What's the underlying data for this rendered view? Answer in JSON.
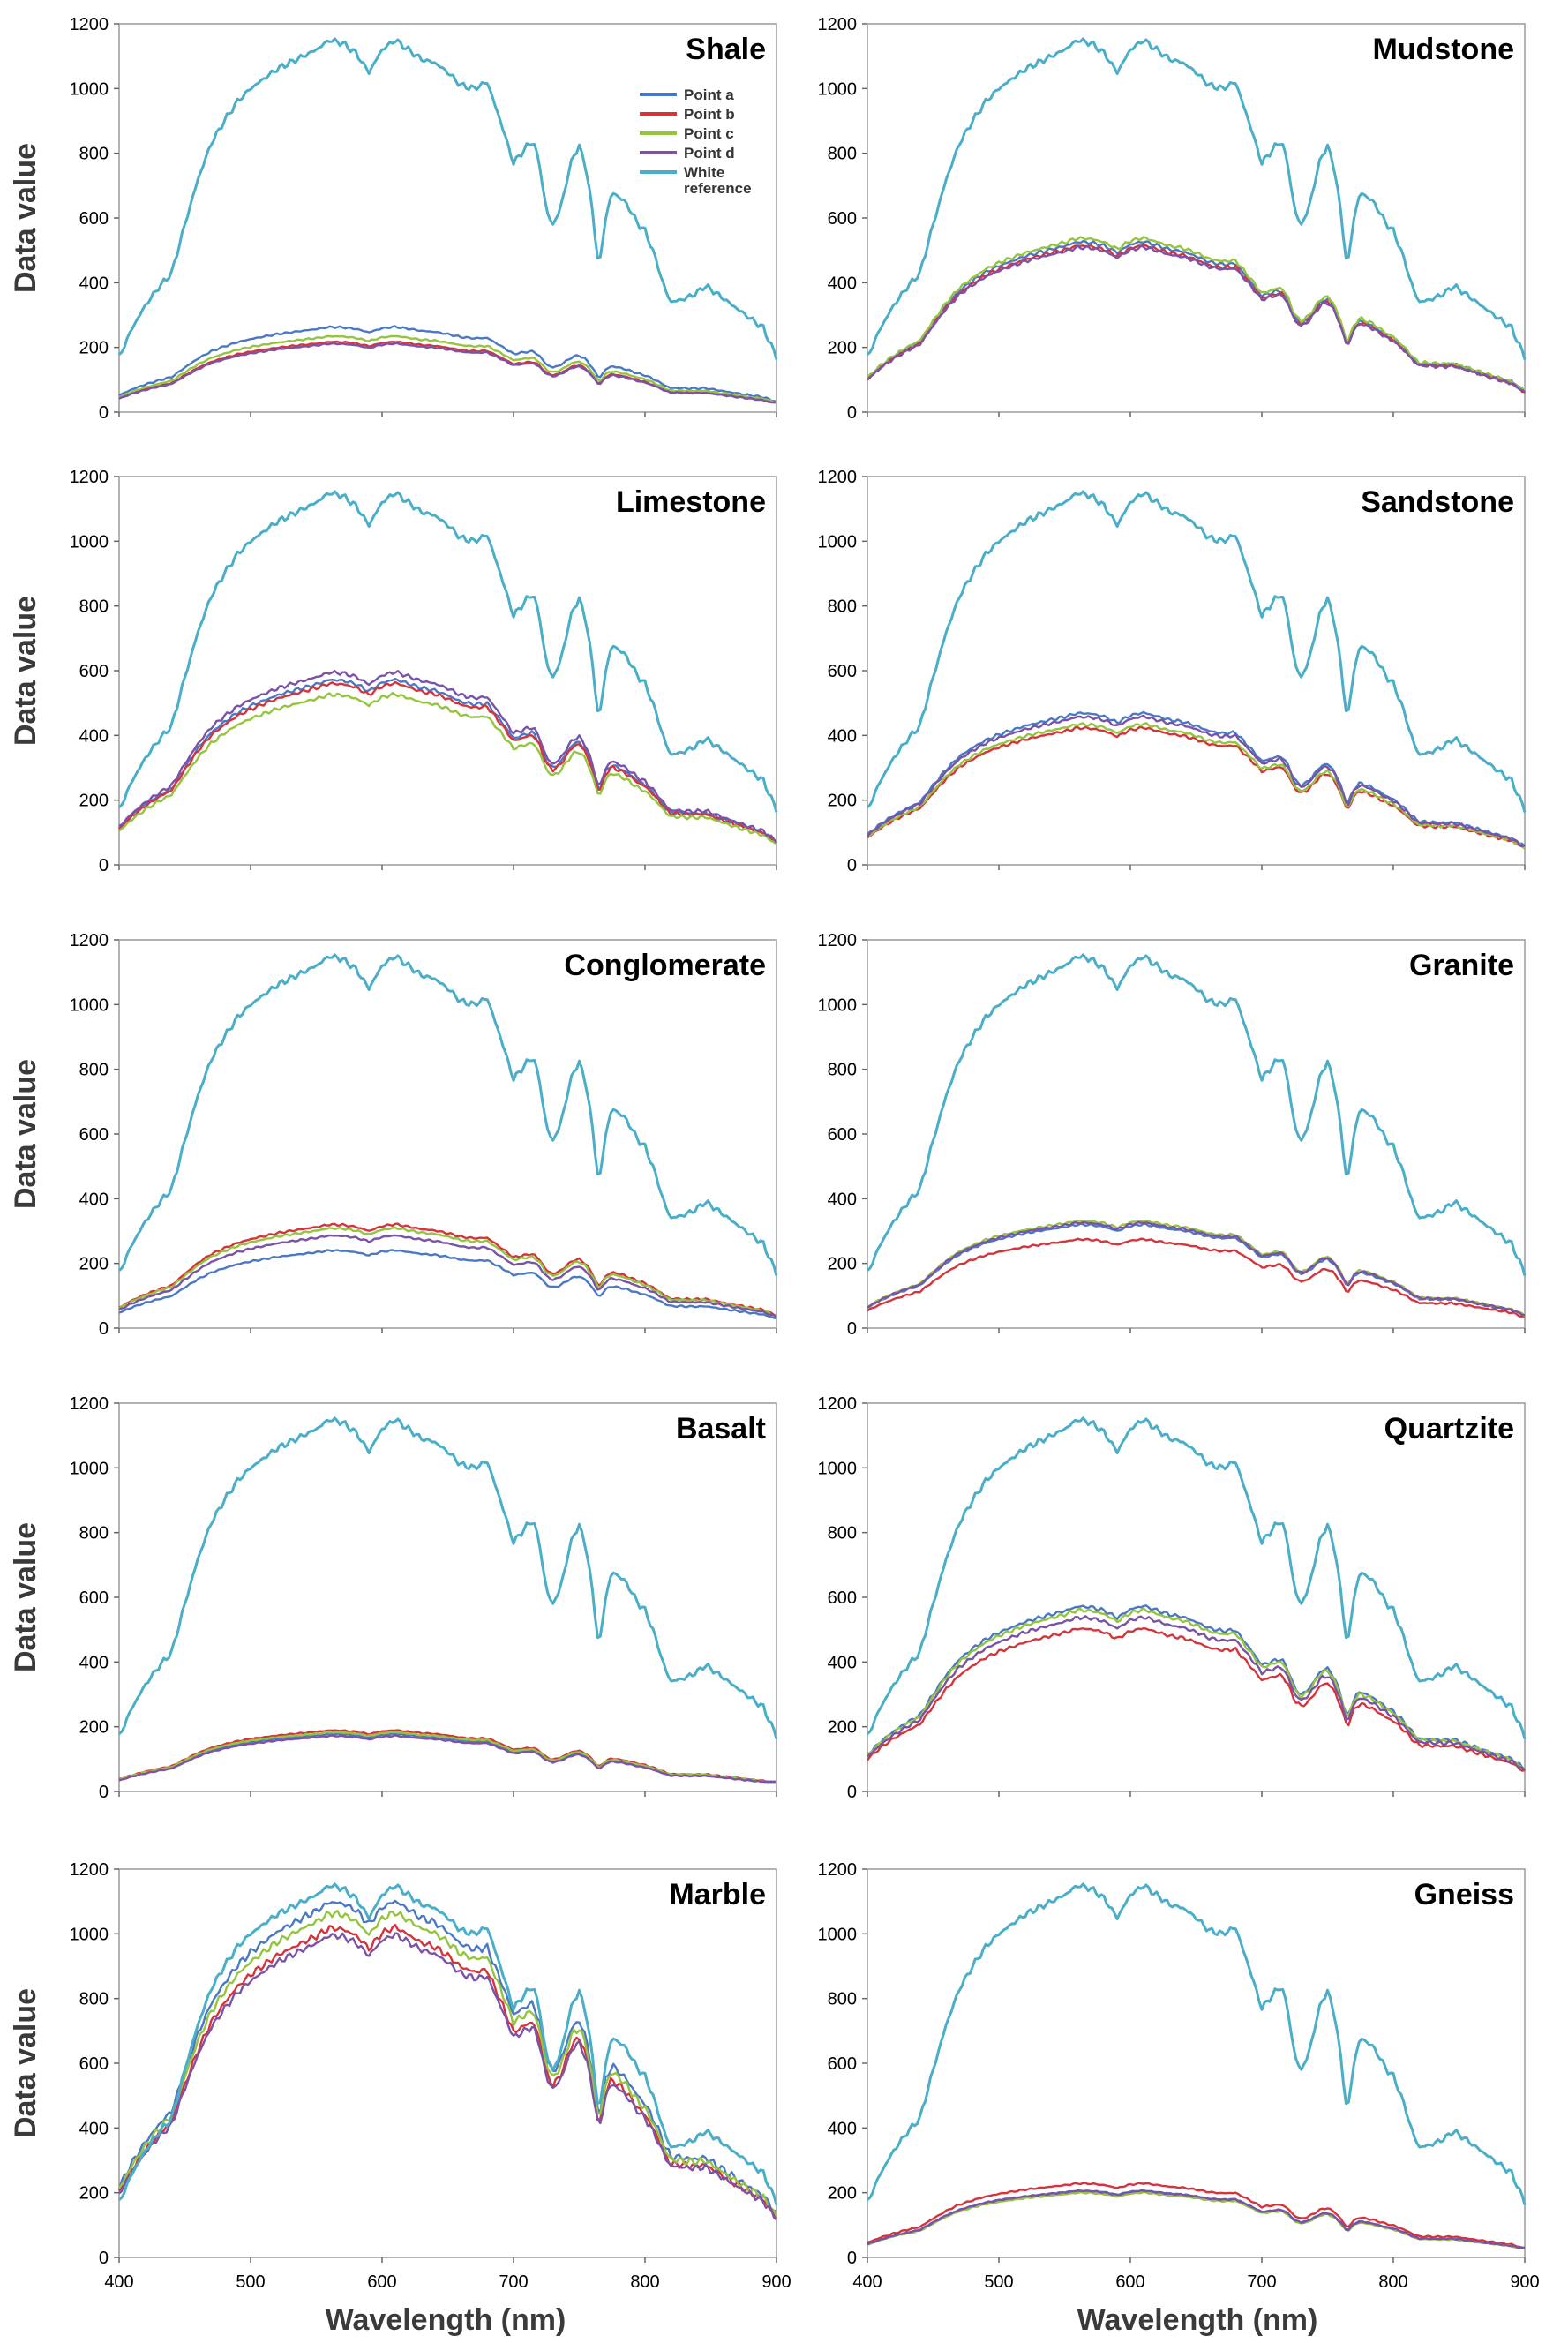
{
  "figure": {
    "ylabel": "Data value",
    "xlabel": "Wavelength (nm)"
  },
  "legend": {
    "entries": [
      {
        "label": "Point a",
        "color": "#4a78c4"
      },
      {
        "label": "Point b",
        "color": "#d6333b"
      },
      {
        "label": "Point c",
        "color": "#95c43d"
      },
      {
        "label": "Point d",
        "color": "#7a52a8"
      },
      {
        "label": "White reference",
        "label_line1": "White",
        "label_line2": "reference",
        "color": "#4aaec8"
      }
    ]
  },
  "chart_data": [
    {
      "type": "line",
      "title": "Shale",
      "xlim": [
        400,
        900
      ],
      "ylim": [
        0,
        1200
      ],
      "xticks": [
        "400",
        "500",
        "600",
        "700",
        "800",
        "900"
      ],
      "yticks": [
        "0",
        "200",
        "400",
        "600",
        "800",
        "1000",
        "1200"
      ],
      "series": [
        {
          "name": "Point a",
          "scale": 0.23
        },
        {
          "name": "Point b",
          "scale": 0.19
        },
        {
          "name": "Point c",
          "scale": 0.205
        },
        {
          "name": "Point d",
          "scale": 0.185
        },
        {
          "name": "White reference",
          "scale": 1.0
        }
      ]
    },
    {
      "type": "line",
      "title": "Mudstone",
      "xlim": [
        400,
        900
      ],
      "ylim": [
        0,
        1200
      ],
      "xticks": [
        "400",
        "500",
        "600",
        "700",
        "800",
        "900"
      ],
      "yticks": [
        "0",
        "200",
        "400",
        "600",
        "800",
        "1000",
        "1200"
      ],
      "series": [
        {
          "name": "Point a",
          "scale": 0.46
        },
        {
          "name": "Point b",
          "scale": 0.45
        },
        {
          "name": "Point c",
          "scale": 0.47
        },
        {
          "name": "Point d",
          "scale": 0.445
        },
        {
          "name": "White reference",
          "scale": 1.0
        }
      ]
    },
    {
      "type": "line",
      "title": "Limestone",
      "xlim": [
        400,
        900
      ],
      "ylim": [
        0,
        1200
      ],
      "xticks": [
        "400",
        "500",
        "600",
        "700",
        "800",
        "900"
      ],
      "yticks": [
        "0",
        "200",
        "400",
        "600",
        "800",
        "1000",
        "1200"
      ],
      "series": [
        {
          "name": "Point a",
          "scale": 0.5
        },
        {
          "name": "Point b",
          "scale": 0.49
        },
        {
          "name": "Point c",
          "scale": 0.46
        },
        {
          "name": "Point d",
          "scale": 0.52
        },
        {
          "name": "White reference",
          "scale": 1.0
        }
      ]
    },
    {
      "type": "line",
      "title": "Sandstone",
      "xlim": [
        400,
        900
      ],
      "ylim": [
        0,
        1200
      ],
      "xticks": [
        "400",
        "500",
        "600",
        "700",
        "800",
        "900"
      ],
      "yticks": [
        "0",
        "200",
        "400",
        "600",
        "800",
        "1000",
        "1200"
      ],
      "series": [
        {
          "name": "Point a",
          "scale": 0.41
        },
        {
          "name": "Point b",
          "scale": 0.37
        },
        {
          "name": "Point c",
          "scale": 0.38
        },
        {
          "name": "Point d",
          "scale": 0.4
        },
        {
          "name": "White reference",
          "scale": 1.0
        }
      ]
    },
    {
      "type": "line",
      "title": "Conglomerate",
      "xlim": [
        400,
        900
      ],
      "ylim": [
        0,
        1200
      ],
      "xticks": [
        "400",
        "500",
        "600",
        "700",
        "800",
        "900"
      ],
      "yticks": [
        "0",
        "200",
        "400",
        "600",
        "800",
        "1000",
        "1200"
      ],
      "series": [
        {
          "name": "Point a",
          "scale": 0.21
        },
        {
          "name": "Point b",
          "scale": 0.28
        },
        {
          "name": "Point c",
          "scale": 0.27
        },
        {
          "name": "Point d",
          "scale": 0.25
        },
        {
          "name": "White reference",
          "scale": 1.0
        }
      ]
    },
    {
      "type": "line",
      "title": "Granite",
      "xlim": [
        400,
        900
      ],
      "ylim": [
        0,
        1200
      ],
      "xticks": [
        "400",
        "500",
        "600",
        "700",
        "800",
        "900"
      ],
      "yticks": [
        "0",
        "200",
        "400",
        "600",
        "800",
        "1000",
        "1200"
      ],
      "series": [
        {
          "name": "Point a",
          "scale": 0.28
        },
        {
          "name": "Point b",
          "scale": 0.24
        },
        {
          "name": "Point c",
          "scale": 0.29
        },
        {
          "name": "Point d",
          "scale": 0.285
        },
        {
          "name": "White reference",
          "scale": 1.0
        }
      ]
    },
    {
      "type": "line",
      "title": "Basalt",
      "xlim": [
        400,
        900
      ],
      "ylim": [
        0,
        1200
      ],
      "xticks": [
        "400",
        "500",
        "600",
        "700",
        "800",
        "900"
      ],
      "yticks": [
        "0",
        "200",
        "400",
        "600",
        "800",
        "1000",
        "1200"
      ],
      "series": [
        {
          "name": "Point a",
          "scale": 0.155
        },
        {
          "name": "Point b",
          "scale": 0.165
        },
        {
          "name": "Point c",
          "scale": 0.16
        },
        {
          "name": "Point d",
          "scale": 0.15
        },
        {
          "name": "White reference",
          "scale": 1.0
        }
      ]
    },
    {
      "type": "line",
      "title": "Quartzite",
      "xlim": [
        400,
        900
      ],
      "ylim": [
        0,
        1200
      ],
      "xticks": [
        "400",
        "500",
        "600",
        "700",
        "800",
        "900"
      ],
      "yticks": [
        "0",
        "200",
        "400",
        "600",
        "800",
        "1000",
        "1200"
      ],
      "series": [
        {
          "name": "Point a",
          "scale": 0.5
        },
        {
          "name": "Point b",
          "scale": 0.44
        },
        {
          "name": "Point c",
          "scale": 0.49
        },
        {
          "name": "Point d",
          "scale": 0.47
        },
        {
          "name": "White reference",
          "scale": 1.0
        }
      ]
    },
    {
      "type": "line",
      "title": "Marble",
      "xlim": [
        400,
        900
      ],
      "ylim": [
        0,
        1200
      ],
      "xticks": [
        "400",
        "500",
        "600",
        "700",
        "800",
        "900"
      ],
      "yticks": [
        "0",
        "200",
        "400",
        "600",
        "800",
        "1000",
        "1200"
      ],
      "series": [
        {
          "name": "Point a",
          "scale": 0.96
        },
        {
          "name": "Point b",
          "scale": 0.89
        },
        {
          "name": "Point c",
          "scale": 0.93
        },
        {
          "name": "Point d",
          "scale": 0.87
        },
        {
          "name": "White reference",
          "scale": 1.0
        }
      ]
    },
    {
      "type": "line",
      "title": "Gneiss",
      "xlim": [
        400,
        900
      ],
      "ylim": [
        0,
        1200
      ],
      "xticks": [
        "400",
        "500",
        "600",
        "700",
        "800",
        "900"
      ],
      "yticks": [
        "0",
        "200",
        "400",
        "600",
        "800",
        "1000",
        "1200"
      ],
      "series": [
        {
          "name": "Point a",
          "scale": 0.18
        },
        {
          "name": "Point b",
          "scale": 0.2
        },
        {
          "name": "Point c",
          "scale": 0.175
        },
        {
          "name": "Point d",
          "scale": 0.18
        },
        {
          "name": "White reference",
          "scale": 1.0
        }
      ]
    }
  ],
  "white_reference_shape": [
    [
      400,
      170
    ],
    [
      410,
      260
    ],
    [
      420,
      330
    ],
    [
      430,
      385
    ],
    [
      440,
      430
    ],
    [
      450,
      580
    ],
    [
      460,
      720
    ],
    [
      470,
      830
    ],
    [
      480,
      900
    ],
    [
      490,
      960
    ],
    [
      500,
      1000
    ],
    [
      510,
      1030
    ],
    [
      520,
      1060
    ],
    [
      530,
      1080
    ],
    [
      540,
      1100
    ],
    [
      550,
      1120
    ],
    [
      560,
      1150
    ],
    [
      570,
      1140
    ],
    [
      580,
      1110
    ],
    [
      590,
      1050
    ],
    [
      600,
      1120
    ],
    [
      610,
      1150
    ],
    [
      620,
      1120
    ],
    [
      630,
      1090
    ],
    [
      640,
      1080
    ],
    [
      650,
      1050
    ],
    [
      660,
      1010
    ],
    [
      670,
      1000
    ],
    [
      680,
      1020
    ],
    [
      690,
      900
    ],
    [
      700,
      770
    ],
    [
      710,
      820
    ],
    [
      715,
      840
    ],
    [
      720,
      760
    ],
    [
      725,
      620
    ],
    [
      730,
      580
    ],
    [
      735,
      620
    ],
    [
      745,
      790
    ],
    [
      750,
      820
    ],
    [
      755,
      760
    ],
    [
      760,
      620
    ],
    [
      765,
      440
    ],
    [
      770,
      600
    ],
    [
      775,
      680
    ],
    [
      785,
      650
    ],
    [
      795,
      580
    ],
    [
      800,
      560
    ],
    [
      805,
      510
    ],
    [
      810,
      450
    ],
    [
      815,
      380
    ],
    [
      820,
      340
    ],
    [
      830,
      350
    ],
    [
      840,
      370
    ],
    [
      845,
      390
    ],
    [
      850,
      380
    ],
    [
      860,
      350
    ],
    [
      870,
      320
    ],
    [
      880,
      290
    ],
    [
      890,
      260
    ],
    [
      900,
      170
    ]
  ]
}
